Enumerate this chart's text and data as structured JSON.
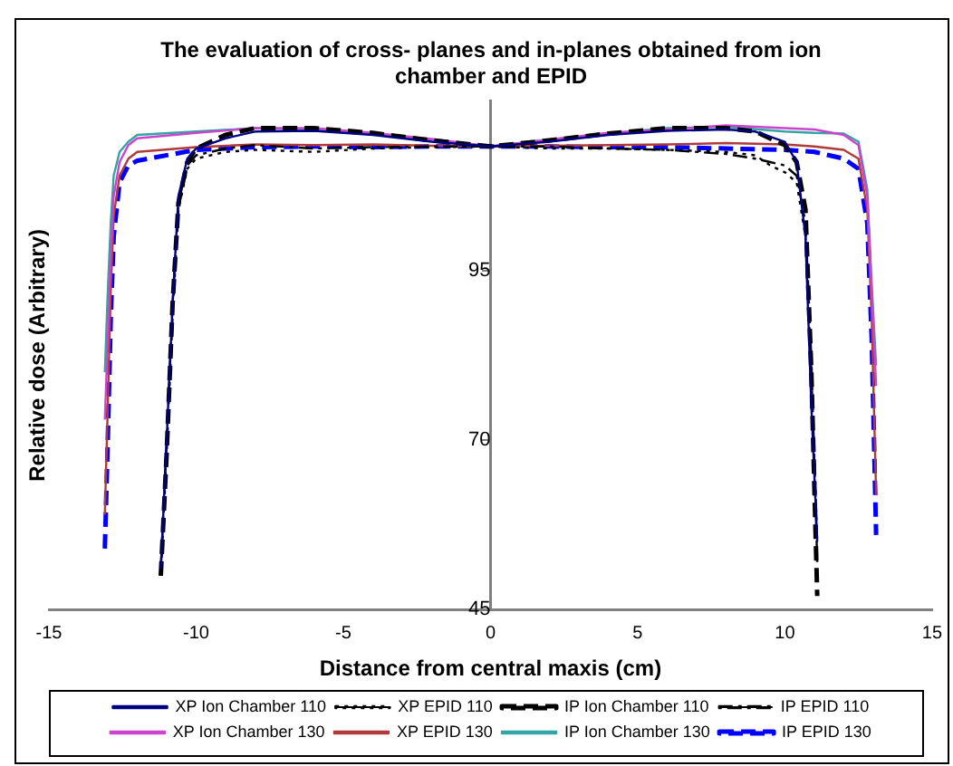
{
  "chart_data": {
    "type": "line",
    "title": "The evaluation of cross- planes and in-planes obtained from ion chamber and EPID",
    "xlabel": "Distance from central maxis (cm)",
    "ylabel": "Relative dose (Arbitrary)",
    "xlim": [
      -15,
      15
    ],
    "xticks": [
      -15,
      -10,
      -5,
      0,
      5,
      10,
      15
    ],
    "ylim": [
      45,
      120
    ],
    "yticks": [
      45,
      70,
      95
    ],
    "grid": false,
    "legend": "bottom",
    "marker": "none",
    "series": [
      {
        "name": "XP Ion Chamber 110",
        "color": "#000080",
        "line_style": "solid",
        "x": [
          -11.2,
          -11.0,
          -10.8,
          -10.6,
          -10.3,
          -10,
          -9,
          -8,
          -6,
          -4,
          -2,
          0,
          2,
          4,
          6,
          8,
          9,
          10,
          10.4,
          10.7,
          10.9,
          11.1
        ],
        "values": [
          51,
          70,
          90,
          106,
          111.5,
          113,
          114.5,
          115.5,
          115.6,
          115,
          114,
          113.3,
          114,
          115,
          115.6,
          115.8,
          115.5,
          114,
          111,
          100,
          75,
          55
        ]
      },
      {
        "name": "XP EPID 110",
        "color": "#000000",
        "line_style": "dotted",
        "x": [
          -11.2,
          -11,
          -10.8,
          -10.6,
          -10.3,
          -10,
          -9,
          -8,
          -6,
          -4,
          -2,
          0,
          2,
          4,
          6,
          8,
          9,
          9.5,
          10,
          10.4,
          10.7,
          10.9,
          11.1
        ],
        "values": [
          50,
          68,
          88,
          104,
          110,
          111.5,
          112.5,
          112.8,
          112.5,
          113,
          113.2,
          113.3,
          113,
          113,
          112.8,
          112.5,
          112,
          110.5,
          109.5,
          108,
          100,
          80,
          55
        ]
      },
      {
        "name": "IP Ion Chamber 110",
        "color": "#000000",
        "line_style": "dashed",
        "x": [
          -11.2,
          -11.0,
          -10.8,
          -10.6,
          -10.3,
          -10,
          -9,
          -8,
          -6,
          -4,
          -2,
          0,
          2,
          4,
          6,
          8,
          9,
          10,
          10.4,
          10.7,
          10.9,
          11.1
        ],
        "values": [
          50,
          68,
          90,
          105,
          111,
          113,
          115,
          116,
          116,
          115.3,
          114.2,
          113.3,
          114.2,
          115.2,
          116,
          116,
          115.5,
          113.5,
          111,
          104,
          80,
          47
        ]
      },
      {
        "name": "IP EPID 110",
        "color": "#000000",
        "line_style": "dashdot",
        "x": [
          -11.2,
          -11,
          -10.8,
          -10.6,
          -10.3,
          -10,
          -9,
          -8,
          -6,
          -4,
          -2,
          0,
          2,
          4,
          6,
          8,
          9,
          9.5,
          10,
          10.4,
          10.7,
          10.9,
          11.1
        ],
        "values": [
          51,
          70,
          90,
          105,
          110.5,
          112,
          113,
          113.5,
          113,
          113.2,
          113.3,
          113.3,
          113.3,
          113,
          112.8,
          112.2,
          111.5,
          111,
          110.5,
          109,
          102,
          82,
          52
        ]
      },
      {
        "name": "XP Ion Chamber 130",
        "color": "#cc44cc",
        "line_style": "solid",
        "x": [
          -13.1,
          -13.0,
          -12.9,
          -12.8,
          -12.6,
          -12.3,
          -12,
          -10,
          -8,
          -6,
          -4,
          -2,
          0,
          2,
          4,
          6,
          8,
          10,
          11,
          12,
          12.5,
          12.8,
          12.95,
          13.1
        ],
        "values": [
          73,
          85,
          97,
          106,
          111,
          113.5,
          114.5,
          115.3,
          116,
          116,
          115.3,
          114.4,
          113.3,
          114.3,
          115.3,
          115.8,
          116.4,
          116,
          115.8,
          115,
          113.5,
          106,
          92,
          78
        ]
      },
      {
        "name": "XP EPID 130",
        "color": "#b03a3a",
        "line_style": "solid",
        "x": [
          -13.1,
          -13.0,
          -12.9,
          -12.8,
          -12.6,
          -12.3,
          -12,
          -10,
          -8,
          -6,
          -4,
          -2,
          0,
          2,
          4,
          6,
          8,
          10,
          11,
          12,
          12.5,
          12.8,
          12.95,
          13.1
        ],
        "values": [
          59,
          75,
          92,
          103,
          109,
          111.5,
          112.5,
          113.2,
          113.6,
          113.5,
          113.6,
          113.4,
          113.3,
          113.4,
          113.5,
          113.6,
          113.8,
          113.6,
          113.3,
          112.8,
          111.5,
          104,
          88,
          62
        ]
      },
      {
        "name": "IP Ion Chamber 130",
        "color": "#33a3a3",
        "line_style": "solid",
        "x": [
          -13.1,
          -13.0,
          -12.9,
          -12.8,
          -12.6,
          -12.3,
          -12,
          -10,
          -8,
          -6,
          -4,
          -2,
          0,
          2,
          4,
          6,
          8,
          10,
          11,
          12,
          12.5,
          12.8,
          12.95,
          13.1
        ],
        "values": [
          80,
          92,
          102,
          109,
          112.5,
          114,
          115,
          115.5,
          116,
          115.8,
          115.2,
          114.3,
          113.3,
          114.3,
          115.2,
          116,
          116.2,
          115.5,
          115.3,
          115.2,
          114,
          107,
          93,
          81
        ]
      },
      {
        "name": "IP EPID 130",
        "color": "#0000ff",
        "line_style": "dashed",
        "x": [
          -13.1,
          -13.0,
          -12.9,
          -12.8,
          -12.6,
          -12.3,
          -12,
          -10,
          -8,
          -6,
          -4,
          -2,
          0,
          2,
          4,
          6,
          8,
          10,
          11,
          12,
          12.5,
          12.8,
          12.95,
          13.1
        ],
        "values": [
          54,
          70,
          88,
          100,
          108,
          110.5,
          111.2,
          112.8,
          113.2,
          113.3,
          113.2,
          113.3,
          113.3,
          113.3,
          113.2,
          113.2,
          113,
          112.8,
          112.5,
          111.5,
          110,
          102,
          85,
          56
        ]
      }
    ]
  }
}
